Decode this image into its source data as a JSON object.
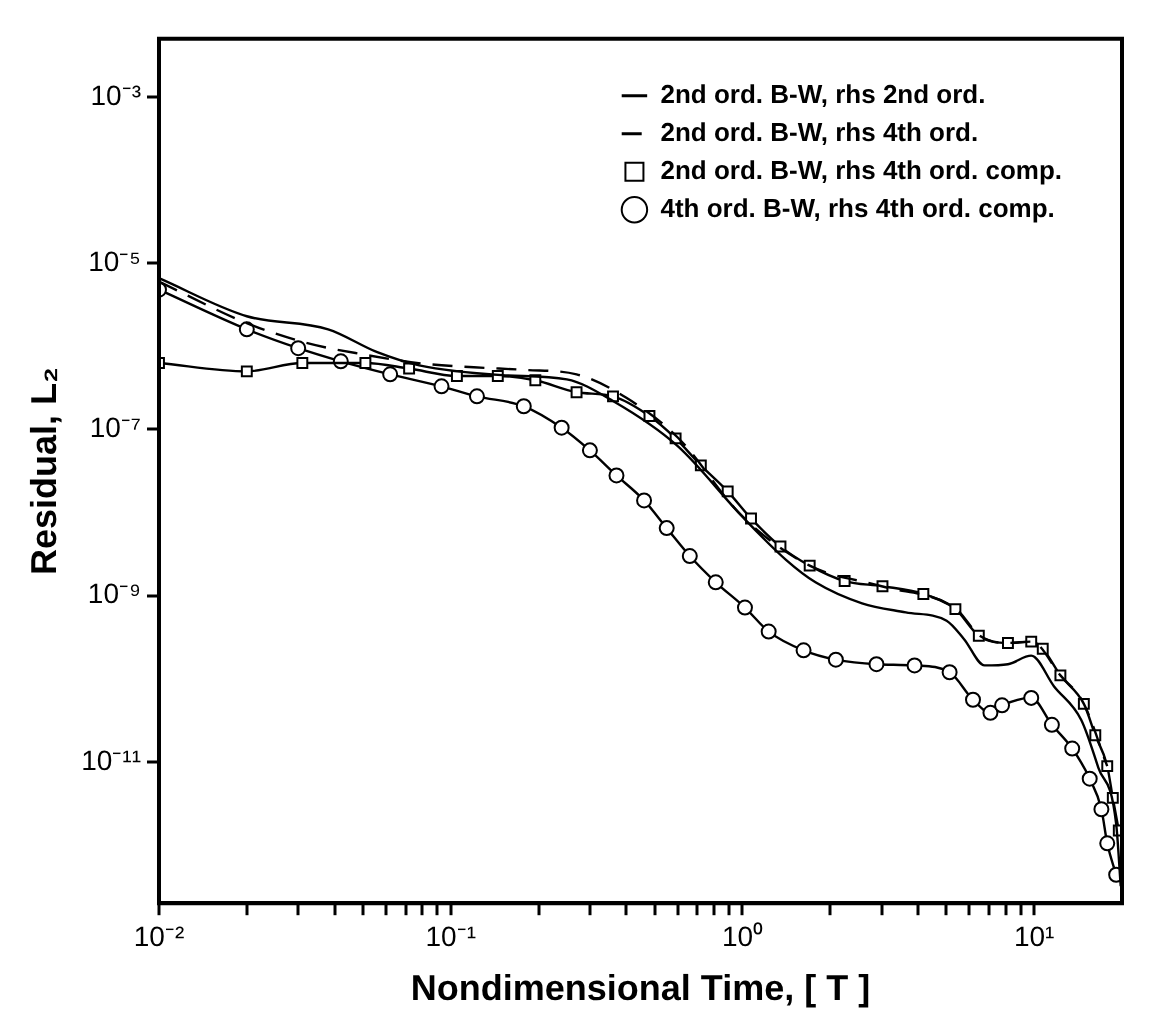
{
  "chart_data": {
    "type": "line",
    "xlabel": "Nondimensional Time, [ T ]",
    "ylabel": "Residual, L₂",
    "log": "xy",
    "grid": false,
    "legend": "top right",
    "xlim": [
      0.01,
      20
    ],
    "ylim": [
      2e-13,
      0.005
    ],
    "xticks": [
      {
        "value": 0.01,
        "label": "10⁻²"
      },
      {
        "value": 0.02,
        "label": null
      },
      {
        "value": 0.03,
        "label": null
      },
      {
        "value": 0.04,
        "label": null
      },
      {
        "value": 0.05,
        "label": null
      },
      {
        "value": 0.06,
        "label": null
      },
      {
        "value": 0.07,
        "label": null
      },
      {
        "value": 0.08,
        "label": null
      },
      {
        "value": 0.09,
        "label": null
      },
      {
        "value": 0.1,
        "label": "10⁻¹"
      },
      {
        "value": 0.2,
        "label": null
      },
      {
        "value": 0.3,
        "label": null
      },
      {
        "value": 0.4,
        "label": null
      },
      {
        "value": 0.5,
        "label": null
      },
      {
        "value": 0.6,
        "label": null
      },
      {
        "value": 0.7,
        "label": null
      },
      {
        "value": 0.8,
        "label": null
      },
      {
        "value": 0.9,
        "label": null
      },
      {
        "value": 1,
        "label": "10⁰"
      },
      {
        "value": 2,
        "label": null
      },
      {
        "value": 3,
        "label": null
      },
      {
        "value": 4,
        "label": null
      },
      {
        "value": 5,
        "label": null
      },
      {
        "value": 6,
        "label": null
      },
      {
        "value": 7,
        "label": null
      },
      {
        "value": 8,
        "label": null
      },
      {
        "value": 9,
        "label": null
      },
      {
        "value": 10,
        "label": "10¹"
      }
    ],
    "yticks": [
      {
        "value": 0.001,
        "label": "10⁻³"
      },
      {
        "value": 1e-05,
        "label": "10⁻⁵"
      },
      {
        "value": 1e-07,
        "label": "10⁻⁷"
      },
      {
        "value": 1e-09,
        "label": "10⁻⁹"
      },
      {
        "value": 1e-11,
        "label": "10⁻¹¹"
      }
    ],
    "series": [
      {
        "name": "2nd ord. B-W, rhs 2nd ord.",
        "color": "#000000",
        "marker": "none",
        "line_style": "solid",
        "x": [
          0.01,
          0.02,
          0.038,
          0.056,
          0.078,
          0.15,
          0.25,
          0.36,
          0.6,
          1.0,
          1.41,
          1.78,
          2.57,
          3.63,
          5.01,
          5.75,
          6.76,
          8.13,
          9.77,
          11.7,
          14.5,
          16.6,
          19.1,
          19.8
        ],
        "values": [
          6.6e-06,
          2.3e-06,
          1.6e-06,
          8.5e-07,
          5.9e-07,
          4.5e-07,
          4e-07,
          2.2e-07,
          6.3e-08,
          8.9e-09,
          2.7e-09,
          1.45e-09,
          8.1e-10,
          6.3e-10,
          5e-10,
          3e-10,
          1.45e-10,
          1.5e-10,
          1.9e-10,
          8.1e-11,
          3.2e-11,
          8.5e-12,
          1.8e-12,
          3.2e-13
        ]
      },
      {
        "name": "2nd ord. B-W, rhs 4th ord.",
        "color": "#000000",
        "marker": "none",
        "line_style": "dashed",
        "x": [
          0.01,
          0.02,
          0.032,
          0.05,
          0.08,
          0.12,
          0.18,
          0.27,
          0.4,
          0.6,
          1.0,
          1.7,
          3.0,
          5.4,
          6.5,
          8.1,
          9.8,
          12.3,
          14.8,
          17.8
        ],
        "values": [
          6e-06,
          1.9e-06,
          1.1e-06,
          8e-07,
          6.2e-07,
          5.6e-07,
          5.2e-07,
          4.6e-07,
          2.4e-07,
          8e-08,
          9e-09,
          2.3e-09,
          1.3e-09,
          6.9e-10,
          3.3e-10,
          2.7e-10,
          2.8e-10,
          1.1e-10,
          5e-11,
          8.9e-12
        ]
      },
      {
        "name": "2nd ord. B-W, rhs 4th ord. comp.",
        "color": "#000000",
        "marker": "square",
        "line_style": "solid",
        "x": [
          0.01,
          0.02,
          0.031,
          0.051,
          0.072,
          0.105,
          0.145,
          0.195,
          0.27,
          0.36,
          0.48,
          0.59,
          0.72,
          0.89,
          1.07,
          1.35,
          1.7,
          2.24,
          3.02,
          4.17,
          5.37,
          6.46,
          8.13,
          9.77,
          10.7,
          12.3,
          14.8,
          16.2,
          17.8,
          18.6,
          19.5
        ],
        "values": [
          6.3e-07,
          5e-07,
          6.3e-07,
          6.3e-07,
          5.4e-07,
          4.4e-07,
          4.4e-07,
          3.9e-07,
          2.8e-07,
          2.5e-07,
          1.45e-07,
          7.8e-08,
          3.7e-08,
          1.8e-08,
          8.5e-09,
          3.9e-09,
          2.3e-09,
          1.5e-09,
          1.3e-09,
          1.05e-09,
          6.9e-10,
          3.3e-10,
          2.7e-10,
          2.8e-10,
          2.3e-10,
          1.1e-10,
          5e-11,
          2.1e-11,
          8.9e-12,
          3.7e-12,
          1.5e-12
        ]
      },
      {
        "name": "4th ord. B-W, rhs 4th ord. comp.",
        "color": "#000000",
        "marker": "circle",
        "line_style": "solid",
        "x": [
          0.01,
          0.02,
          0.03,
          0.042,
          0.062,
          0.093,
          0.123,
          0.178,
          0.24,
          0.3,
          0.37,
          0.46,
          0.55,
          0.66,
          0.81,
          1.02,
          1.23,
          1.62,
          2.09,
          2.88,
          3.89,
          5.13,
          6.17,
          7.08,
          7.76,
          9.77,
          11.5,
          13.5,
          15.5,
          17.0,
          17.8,
          19.1
        ],
        "values": [
          4.8e-06,
          1.6e-06,
          9.5e-07,
          6.6e-07,
          4.6e-07,
          3.3e-07,
          2.5e-07,
          1.9e-07,
          1.05e-07,
          5.6e-08,
          2.8e-08,
          1.4e-08,
          6.5e-09,
          3e-09,
          1.45e-09,
          7.2e-10,
          3.7e-10,
          2.2e-10,
          1.7e-10,
          1.5e-10,
          1.45e-10,
          1.2e-10,
          5.6e-11,
          3.9e-11,
          4.8e-11,
          5.9e-11,
          2.8e-11,
          1.45e-11,
          6.3e-12,
          2.7e-12,
          1.05e-12,
          4.4e-13
        ]
      }
    ]
  }
}
